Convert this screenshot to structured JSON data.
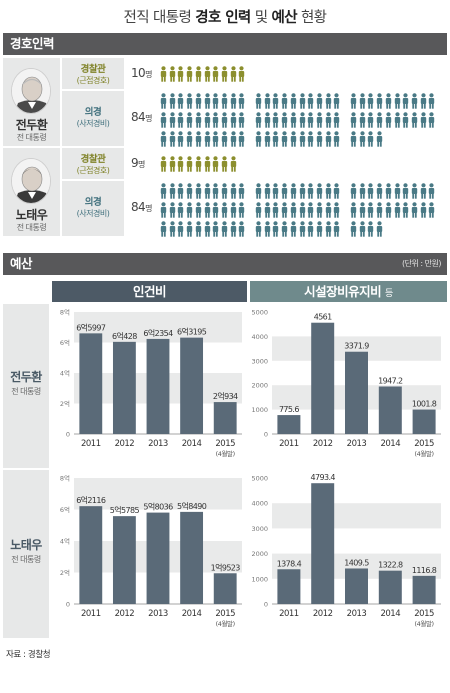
{
  "title": {
    "part1": "전직 대통령 ",
    "bold1": "경호 인력",
    "part2": " 및 ",
    "bold2": "예산",
    "part3": " 현황"
  },
  "guard_section": {
    "header": "경호인력",
    "persons": [
      {
        "name": "전두환",
        "title": "전 대통령",
        "rows": [
          {
            "kind": "police",
            "label": "경찰관",
            "sub": "(근접경호)",
            "count": "10",
            "unit": "명",
            "n": 10
          },
          {
            "kind": "army",
            "label": "의경",
            "sub": "(사저경비)",
            "count": "84",
            "unit": "명",
            "n": 84
          }
        ]
      },
      {
        "name": "노태우",
        "title": "전 대통령",
        "rows": [
          {
            "kind": "police",
            "label": "경찰관",
            "sub": "(근접경호)",
            "count": "9",
            "unit": "명",
            "n": 9
          },
          {
            "kind": "army",
            "label": "의경",
            "sub": "(사저경비)",
            "count": "84",
            "unit": "명",
            "n": 84
          }
        ]
      }
    ]
  },
  "budget_section": {
    "header": "예산",
    "unit_note": "(단위 : 만원)",
    "panel_labor": "인건비",
    "panel_facility": "시설장비유지비",
    "panel_facility_suffix": "등",
    "row_labels": [
      {
        "name": "전두환",
        "title": "전 대통령"
      },
      {
        "name": "노태우",
        "title": "전 대통령"
      }
    ]
  },
  "chart_data": [
    {
      "type": "bar",
      "title": "인건비",
      "person": "전두환",
      "categories": [
        "2011",
        "2012",
        "2013",
        "2014",
        "2015"
      ],
      "category_notes": [
        "",
        "",
        "",
        "",
        "(4월말)"
      ],
      "values": [
        65997,
        60428,
        62354,
        63195,
        20934
      ],
      "labels": [
        "6억5997",
        "6억428",
        "6억2354",
        "6억3195",
        "2억934"
      ],
      "ylim": [
        0,
        80000
      ],
      "yticks": [
        0,
        20000,
        40000,
        60000,
        80000
      ],
      "yticklabels": [
        "0",
        "2억",
        "4억",
        "6억",
        "8억"
      ]
    },
    {
      "type": "bar",
      "title": "시설장비유지비 등",
      "person": "전두환",
      "categories": [
        "2011",
        "2012",
        "2013",
        "2014",
        "2015"
      ],
      "category_notes": [
        "",
        "",
        "",
        "",
        "(4월말)"
      ],
      "values": [
        775.6,
        4561,
        3371.9,
        1947.2,
        1001.8
      ],
      "labels": [
        "775.6",
        "4561",
        "3371.9",
        "1947.2",
        "1001.8"
      ],
      "ylim": [
        0,
        5000
      ],
      "yticks": [
        0,
        1000,
        2000,
        3000,
        4000,
        5000
      ],
      "yticklabels": [
        "0",
        "1000",
        "2000",
        "3000",
        "4000",
        "5000"
      ]
    },
    {
      "type": "bar",
      "title": "인건비",
      "person": "노태우",
      "categories": [
        "2011",
        "2012",
        "2013",
        "2014",
        "2015"
      ],
      "category_notes": [
        "",
        "",
        "",
        "",
        "(4월말)"
      ],
      "values": [
        62116,
        55785,
        58036,
        58490,
        19523
      ],
      "labels": [
        "6억2116",
        "5억5785",
        "5억8036",
        "5억8490",
        "1억9523"
      ],
      "ylim": [
        0,
        80000
      ],
      "yticks": [
        0,
        20000,
        40000,
        60000,
        80000
      ],
      "yticklabels": [
        "0",
        "2억",
        "4억",
        "6억",
        "8억"
      ]
    },
    {
      "type": "bar",
      "title": "시설장비유지비 등",
      "person": "노태우",
      "categories": [
        "2011",
        "2012",
        "2013",
        "2014",
        "2015"
      ],
      "category_notes": [
        "",
        "",
        "",
        "",
        "(4월말)"
      ],
      "values": [
        1378.4,
        4793.4,
        1409.5,
        1322.8,
        1116.8
      ],
      "labels": [
        "1378.4",
        "4793.4",
        "1409.5",
        "1322.8",
        "1116.8"
      ],
      "ylim": [
        0,
        5000
      ],
      "yticks": [
        0,
        1000,
        2000,
        3000,
        4000,
        5000
      ],
      "yticklabels": [
        "0",
        "1000",
        "2000",
        "3000",
        "4000",
        "5000"
      ]
    }
  ],
  "colors": {
    "police": "#8c8f2e",
    "army": "#4a7a86",
    "bar": "#5a6a78",
    "panel_labor": "#4d5a66",
    "panel_facility": "#6f8a8c"
  },
  "source": "자료 : 경찰청"
}
